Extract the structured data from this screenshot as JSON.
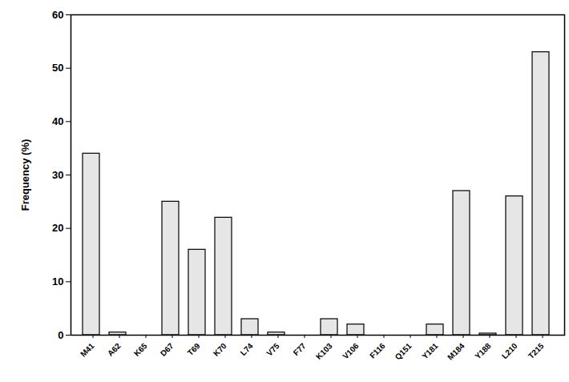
{
  "chart_data": {
    "type": "bar",
    "categories": [
      "M41",
      "A62",
      "K65",
      "D67",
      "T69",
      "K70",
      "L74",
      "V75",
      "F77",
      "K103",
      "V106",
      "F116",
      "Q151",
      "Y181",
      "M184",
      "Y188",
      "L210",
      "T215"
    ],
    "values": [
      34,
      0.5,
      0,
      25,
      16,
      22,
      3,
      0.5,
      0,
      3,
      2,
      0,
      0,
      2,
      27,
      0.3,
      26,
      53
    ],
    "ylabel": "Frequency (%)",
    "color": "#e6e6e6",
    "ylim": [
      0,
      60
    ],
    "yticks": [
      0,
      10,
      20,
      30,
      40,
      50,
      60
    ],
    "grid": false
  }
}
